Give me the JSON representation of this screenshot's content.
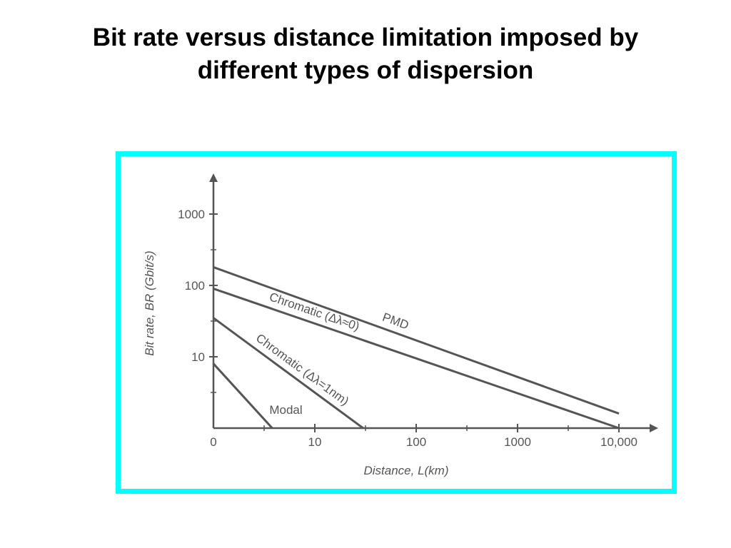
{
  "slide": {
    "title_line1": "Bit rate versus distance limitation imposed by",
    "title_line2": "different types of dispersion"
  },
  "colors": {
    "frame": "#00ffff",
    "ink": "#555555"
  },
  "chart_data": {
    "type": "line",
    "xlabel": "Distance, L(km)",
    "ylabel": "Bit rate, BR (Gbit/s)",
    "x_scale": "log",
    "y_scale": "log",
    "x_ticks": [
      "0",
      "10",
      "100",
      "1000",
      "10,000"
    ],
    "y_ticks": [
      "10",
      "100",
      "1000"
    ],
    "series": [
      {
        "name": "PMD",
        "x": [
          1,
          10000
        ],
        "y": [
          180,
          1.6
        ]
      },
      {
        "name": "Chromatic (Δλ≈0)",
        "x": [
          1,
          10000
        ],
        "y": [
          90,
          1
        ]
      },
      {
        "name": "Chromatic (Δλ=1nm)",
        "x": [
          1,
          30
        ],
        "y": [
          35,
          1
        ]
      },
      {
        "name": "Modal",
        "x": [
          1,
          3.8
        ],
        "y": [
          8,
          1
        ]
      }
    ],
    "grid": false,
    "legend": "none"
  }
}
